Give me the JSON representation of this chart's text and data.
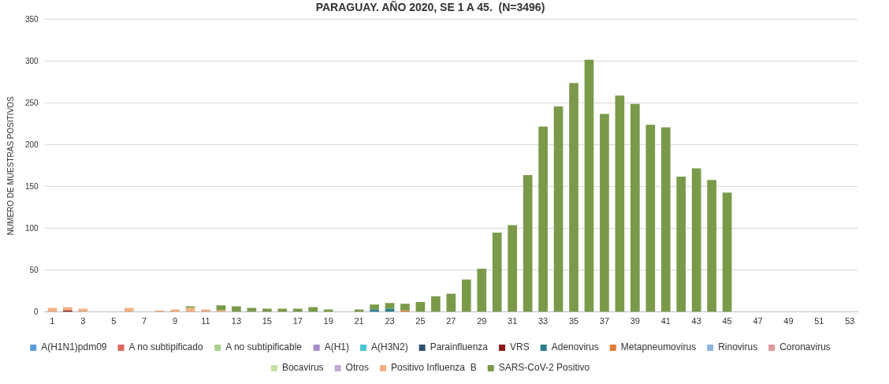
{
  "chart_data": {
    "type": "bar",
    "stacked": true,
    "title": "PARAGUAY. AÑO 2020, SE 1 A 45.  (N=3496)",
    "ylabel": "NUMERO DE MUESTRAS POSITIVOS",
    "x": [
      1,
      2,
      3,
      4,
      5,
      6,
      7,
      8,
      9,
      10,
      11,
      12,
      13,
      14,
      15,
      16,
      17,
      18,
      19,
      20,
      21,
      22,
      23,
      24,
      25,
      26,
      27,
      28,
      29,
      30,
      31,
      32,
      33,
      34,
      35,
      36,
      37,
      38,
      39,
      40,
      41,
      42,
      43,
      44,
      45,
      46,
      47,
      48,
      49,
      50,
      51,
      52,
      53
    ],
    "xlim": [
      0.5,
      53.5
    ],
    "xticks": [
      1,
      3,
      5,
      7,
      9,
      11,
      13,
      15,
      17,
      19,
      21,
      23,
      25,
      27,
      29,
      31,
      33,
      35,
      37,
      39,
      41,
      43,
      45,
      47,
      49,
      51,
      53
    ],
    "ylim": [
      0,
      350
    ],
    "yticks": [
      0,
      50,
      100,
      150,
      200,
      250,
      300,
      350
    ],
    "grid": "y",
    "legend": "bottom",
    "series": [
      {
        "name": "A(H1N1)pdm09",
        "color": "#5b9bd5",
        "values": [
          0,
          0,
          0,
          0,
          0,
          0,
          0,
          0,
          0,
          0,
          0,
          0,
          0,
          0,
          0,
          0,
          0,
          0,
          0,
          0,
          0,
          0,
          0,
          0,
          0,
          0,
          0,
          0,
          0,
          0,
          0,
          0,
          0,
          0,
          0,
          0,
          0,
          0,
          0,
          0,
          0,
          0,
          0,
          0,
          0,
          0,
          0,
          0,
          0,
          0,
          0,
          0,
          0
        ]
      },
      {
        "name": "A no subtipificado",
        "color": "#e06660",
        "values": [
          0,
          0,
          0,
          0,
          0,
          0,
          0,
          0,
          0,
          0,
          0,
          0,
          0,
          0,
          0,
          0,
          0,
          0,
          0,
          0,
          0,
          0,
          0,
          0,
          0,
          0,
          0,
          0,
          0,
          0,
          0,
          0,
          0,
          0,
          0,
          0,
          0,
          0,
          0,
          0,
          0,
          0,
          0,
          0,
          0,
          0,
          0,
          0,
          0,
          0,
          0,
          0,
          0
        ]
      },
      {
        "name": "A no subtipificable",
        "color": "#a9d18e",
        "values": [
          0,
          0,
          0,
          0,
          0,
          0,
          0,
          0,
          0,
          0,
          0,
          0,
          0,
          0,
          0,
          0,
          0,
          0,
          0,
          0,
          0,
          0,
          0,
          0,
          0,
          0,
          0,
          0,
          0,
          0,
          0,
          0,
          0,
          0,
          0,
          0,
          0,
          0,
          0,
          0,
          0,
          0,
          0,
          0,
          0,
          0,
          0,
          0,
          0,
          0,
          0,
          0,
          0
        ]
      },
      {
        "name": "A(H1)",
        "color": "#a68cc8",
        "values": [
          0,
          0,
          0,
          0,
          0,
          0,
          0,
          0,
          0,
          0,
          0,
          0,
          0,
          0,
          0,
          0,
          0,
          0,
          0,
          0,
          0,
          0,
          0,
          0,
          0,
          0,
          0,
          0,
          0,
          0,
          0,
          0,
          0,
          0,
          0,
          0,
          0,
          0,
          0,
          0,
          0,
          0,
          0,
          0,
          0,
          0,
          0,
          0,
          0,
          0,
          0,
          0,
          0
        ]
      },
      {
        "name": "A(H3N2)",
        "color": "#4bc4d6",
        "values": [
          0,
          0,
          0,
          0,
          0,
          0,
          0,
          0,
          0,
          0,
          0,
          0,
          0,
          0,
          0,
          0,
          0,
          0,
          0,
          0,
          0,
          0,
          0,
          0,
          0,
          0,
          0,
          0,
          0,
          0,
          0,
          0,
          0,
          0,
          0,
          0,
          0,
          0,
          0,
          0,
          0,
          0,
          0,
          0,
          0,
          0,
          0,
          0,
          0,
          0,
          0,
          0,
          0
        ]
      },
      {
        "name": "Parainfluenza",
        "color": "#2f4f6f",
        "values": [
          0,
          0,
          0,
          0,
          0,
          0,
          0,
          0,
          0,
          0,
          0,
          0,
          0,
          0,
          0,
          0,
          0,
          0,
          0,
          0,
          0,
          0,
          0,
          0,
          0,
          0,
          0,
          0,
          0,
          0,
          0,
          0,
          0,
          0,
          0,
          0,
          0,
          0,
          0,
          0,
          0,
          0,
          0,
          0,
          0,
          0,
          0,
          0,
          0,
          0,
          0,
          0,
          0
        ]
      },
      {
        "name": "VRS",
        "color": "#8b1a1a",
        "values": [
          0,
          2,
          0,
          0,
          0,
          0,
          0,
          0,
          0,
          0,
          0,
          0,
          0,
          0,
          0,
          0,
          0,
          0,
          0,
          0,
          0,
          0,
          0,
          0,
          0,
          0,
          0,
          0,
          0,
          0,
          0,
          0,
          0,
          0,
          0,
          0,
          0,
          0,
          0,
          0,
          0,
          0,
          0,
          0,
          0,
          0,
          0,
          0,
          0,
          0,
          0,
          0,
          0
        ]
      },
      {
        "name": "Adenovirus",
        "color": "#2e7d8c",
        "values": [
          0,
          0,
          0,
          0,
          0,
          0,
          0,
          0,
          0,
          0,
          0,
          0,
          0,
          0,
          0,
          0,
          0,
          0,
          0,
          0,
          0,
          3,
          4,
          0,
          0,
          0,
          0,
          0,
          0,
          0,
          0,
          0,
          0,
          0,
          0,
          0,
          0,
          0,
          0,
          0,
          0,
          0,
          0,
          0,
          0,
          0,
          0,
          0,
          0,
          0,
          0,
          0,
          0
        ]
      },
      {
        "name": "Metapneumovirus",
        "color": "#e07b39",
        "values": [
          0,
          0,
          0,
          0,
          0,
          0,
          0,
          0,
          0,
          0,
          0,
          0,
          0,
          0,
          0,
          0,
          0,
          0,
          0,
          0,
          0,
          0,
          0,
          2,
          0,
          0,
          0,
          0,
          0,
          0,
          0,
          0,
          0,
          0,
          0,
          0,
          0,
          0,
          0,
          0,
          0,
          0,
          0,
          0,
          0,
          0,
          0,
          0,
          0,
          0,
          0,
          0,
          0
        ]
      },
      {
        "name": "Rinovirus",
        "color": "#8fb4de",
        "values": [
          0,
          0,
          0,
          0,
          0,
          0,
          0,
          0,
          0,
          0,
          0,
          0,
          0,
          0,
          0,
          0,
          0,
          0,
          0,
          0,
          0,
          0,
          0,
          0,
          0,
          0,
          0,
          0,
          0,
          0,
          0,
          0,
          0,
          0,
          0,
          0,
          0,
          0,
          0,
          0,
          0,
          0,
          0,
          0,
          0,
          0,
          0,
          0,
          0,
          0,
          0,
          0,
          0
        ]
      },
      {
        "name": "Coronavirus",
        "color": "#e39a9a",
        "values": [
          0,
          0,
          0,
          0,
          0,
          0,
          0,
          0,
          0,
          0,
          0,
          0,
          0,
          0,
          0,
          0,
          0,
          0,
          0,
          0,
          0,
          0,
          0,
          0,
          0,
          0,
          0,
          0,
          0,
          0,
          0,
          0,
          0,
          0,
          0,
          0,
          0,
          0,
          0,
          0,
          0,
          0,
          0,
          0,
          0,
          0,
          0,
          0,
          0,
          0,
          0,
          0,
          0
        ]
      },
      {
        "name": "Bocavirus",
        "color": "#c5e0a5",
        "values": [
          0,
          0,
          0,
          0,
          0,
          0,
          0,
          0,
          0,
          0,
          0,
          0,
          0,
          0,
          0,
          0,
          0,
          0,
          0,
          0,
          0,
          0,
          0,
          0,
          0,
          0,
          0,
          0,
          0,
          0,
          0,
          0,
          0,
          0,
          0,
          0,
          0,
          0,
          0,
          0,
          0,
          0,
          0,
          0,
          0,
          0,
          0,
          0,
          0,
          0,
          0,
          0,
          0
        ]
      },
      {
        "name": "Otros",
        "color": "#c3a9d6",
        "values": [
          0,
          0,
          0,
          0,
          0,
          0,
          0,
          0,
          0,
          0,
          0,
          0,
          0,
          0,
          0,
          0,
          0,
          0,
          0,
          0,
          0,
          0,
          0,
          0,
          0,
          0,
          0,
          0,
          0,
          0,
          0,
          0,
          0,
          0,
          0,
          0,
          0,
          0,
          0,
          0,
          0,
          0,
          0,
          0,
          0,
          0,
          0,
          0,
          0,
          0,
          0,
          0,
          0
        ]
      },
      {
        "name": "Positivo Influenza  B",
        "color": "#f4b183",
        "values": [
          5,
          4,
          4,
          0,
          0,
          5,
          0,
          2,
          3,
          5,
          3,
          2,
          0,
          0,
          0,
          0,
          0,
          0,
          0,
          0,
          0,
          0,
          0,
          0,
          0,
          0,
          0,
          0,
          0,
          0,
          0,
          0,
          0,
          0,
          0,
          0,
          0,
          0,
          0,
          0,
          0,
          0,
          0,
          0,
          0,
          0,
          0,
          0,
          0,
          0,
          0,
          0,
          0
        ]
      },
      {
        "name": "SARS-CoV-2 Positivo",
        "color": "#7a9a4a",
        "values": [
          0,
          0,
          0,
          0,
          0,
          0,
          0,
          0,
          0,
          2,
          0,
          6,
          7,
          5,
          4,
          4,
          4,
          6,
          3,
          0,
          3,
          6,
          7,
          8,
          12,
          19,
          22,
          39,
          52,
          95,
          104,
          164,
          222,
          246,
          274,
          302,
          237,
          259,
          249,
          224,
          221,
          162,
          172,
          158,
          143,
          0,
          0,
          0,
          0,
          0,
          0,
          0,
          0
        ]
      }
    ]
  }
}
